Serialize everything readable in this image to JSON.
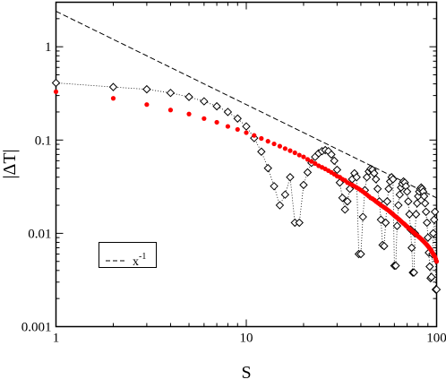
{
  "chart_data": {
    "type": "scatter",
    "xlabel": "S",
    "ylabel": "|ΔT|",
    "x_scale": "log",
    "y_scale": "log",
    "xlim": [
      1,
      100
    ],
    "ylim": [
      0.001,
      3
    ],
    "x_ticks": [
      {
        "value": 1,
        "label": "1"
      },
      {
        "value": 10,
        "label": "10"
      },
      {
        "value": 100,
        "label": "100"
      }
    ],
    "y_ticks": [
      {
        "value": 0.001,
        "label": "0.001"
      },
      {
        "value": 0.01,
        "label": "0.01"
      },
      {
        "value": 0.1,
        "label": "0.1"
      },
      {
        "value": 1,
        "label": "1"
      }
    ],
    "grid": false,
    "legend": {
      "position": "lower-left",
      "label_base": "x",
      "label_exponent": "-1"
    },
    "reference_line": {
      "name": "x^-1",
      "style": "dashed",
      "color": "#000000",
      "coefficient": 2.4,
      "exponent": -1
    },
    "series": [
      {
        "name": "",
        "marker": "open-diamond",
        "line": "dotted",
        "color": "#000000",
        "x": [
          1,
          2,
          3,
          4,
          5,
          6,
          7,
          8,
          9,
          10,
          11,
          12,
          13,
          14,
          15,
          16,
          17,
          18,
          19,
          20,
          21,
          22,
          23,
          24,
          25,
          26,
          27,
          28,
          29,
          30,
          31,
          32,
          33,
          34,
          35,
          36,
          37,
          38,
          39,
          40,
          41,
          42,
          43,
          44,
          45,
          46,
          47,
          48,
          49,
          50,
          51,
          52,
          53,
          54,
          55,
          56,
          57,
          58,
          59,
          60,
          61,
          62,
          63,
          64,
          65,
          66,
          67,
          68,
          69,
          70,
          71,
          72,
          73,
          74,
          75,
          76,
          77,
          78,
          79,
          80,
          81,
          82,
          83,
          84,
          85,
          86,
          87,
          88,
          89,
          90,
          91,
          92,
          93,
          94,
          95,
          96,
          97,
          98,
          99,
          100
        ],
        "y": [
          0.41,
          0.37,
          0.35,
          0.32,
          0.29,
          0.26,
          0.23,
          0.2,
          0.17,
          0.14,
          0.105,
          0.075,
          0.05,
          0.032,
          0.02,
          0.026,
          0.04,
          0.013,
          0.013,
          0.033,
          0.045,
          0.057,
          0.066,
          0.072,
          0.076,
          0.078,
          0.076,
          0.07,
          0.06,
          0.048,
          0.035,
          0.024,
          0.018,
          0.022,
          0.03,
          0.038,
          0.044,
          0.04,
          0.006,
          0.006,
          0.015,
          0.029,
          0.04,
          0.046,
          0.049,
          0.048,
          0.044,
          0.038,
          0.03,
          0.022,
          0.014,
          0.0075,
          0.0073,
          0.013,
          0.022,
          0.03,
          0.036,
          0.04,
          0.038,
          0.0045,
          0.0045,
          0.012,
          0.02,
          0.026,
          0.031,
          0.034,
          0.036,
          0.035,
          0.032,
          0.028,
          0.022,
          0.016,
          0.011,
          0.007,
          0.0038,
          0.0038,
          0.01,
          0.016,
          0.021,
          0.025,
          0.028,
          0.03,
          0.031,
          0.03,
          0.028,
          0.025,
          0.021,
          0.017,
          0.013,
          0.009,
          0.0062,
          0.0044,
          0.0033,
          0.0034,
          0.006,
          0.01,
          0.014,
          0.017,
          0.0025,
          0.0025
        ]
      },
      {
        "name": "",
        "marker": "filled-circle",
        "line": "none",
        "color": "#ff0000",
        "x": [
          1,
          2,
          3,
          4,
          5,
          6,
          7,
          8,
          9,
          10,
          11,
          12,
          13,
          14,
          15,
          16,
          17,
          18,
          19,
          20,
          21,
          22,
          23,
          24,
          25,
          26,
          27,
          28,
          29,
          30,
          31,
          32,
          33,
          34,
          35,
          36,
          37,
          38,
          39,
          40,
          41,
          42,
          43,
          44,
          45,
          46,
          47,
          48,
          49,
          50,
          51,
          52,
          53,
          54,
          55,
          56,
          57,
          58,
          59,
          60,
          61,
          62,
          63,
          64,
          65,
          66,
          67,
          68,
          69,
          70,
          71,
          72,
          73,
          74,
          75,
          76,
          77,
          78,
          79,
          80,
          81,
          82,
          83,
          84,
          85,
          86,
          87,
          88,
          89,
          90,
          91,
          92,
          93,
          94,
          95,
          96,
          97,
          98,
          99,
          100
        ],
        "y": [
          0.33,
          0.28,
          0.24,
          0.21,
          0.19,
          0.17,
          0.155,
          0.14,
          0.13,
          0.12,
          0.112,
          0.104,
          0.097,
          0.091,
          0.086,
          0.081,
          0.077,
          0.073,
          0.069,
          0.066,
          0.062,
          0.059,
          0.056,
          0.053,
          0.051,
          0.049,
          0.047,
          0.045,
          0.043,
          0.041,
          0.04,
          0.038,
          0.037,
          0.035,
          0.034,
          0.033,
          0.032,
          0.031,
          0.03,
          0.029,
          0.028,
          0.027,
          0.026,
          0.025,
          0.024,
          0.0235,
          0.0228,
          0.022,
          0.0213,
          0.0207,
          0.02,
          0.0195,
          0.019,
          0.0185,
          0.018,
          0.0175,
          0.017,
          0.0165,
          0.016,
          0.0155,
          0.0151,
          0.0147,
          0.0143,
          0.0139,
          0.0135,
          0.0131,
          0.0128,
          0.0125,
          0.0121,
          0.0118,
          0.0115,
          0.0112,
          0.011,
          0.0107,
          0.0104,
          0.0102,
          0.0099,
          0.0097,
          0.0095,
          0.0093,
          0.0091,
          0.0089,
          0.0087,
          0.0085,
          0.0083,
          0.0081,
          0.0079,
          0.0077,
          0.0075,
          0.0073,
          0.0071,
          0.0069,
          0.0067,
          0.0065,
          0.0062,
          0.006,
          0.0058,
          0.0056,
          0.0053,
          0.005
        ]
      }
    ]
  }
}
